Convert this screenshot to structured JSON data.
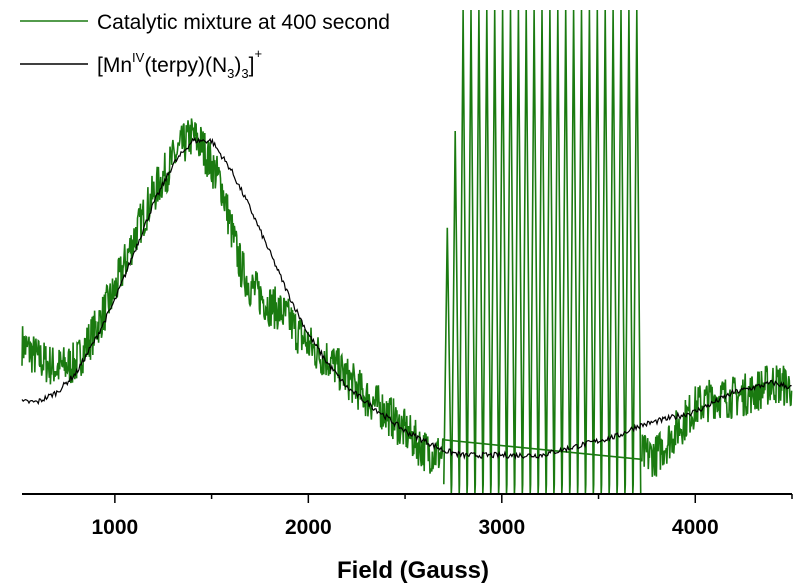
{
  "chart_data": {
    "type": "line",
    "title": "",
    "xlabel": "Field (Gauss)",
    "ylabel": "",
    "xlim": [
      520,
      4500
    ],
    "ylim": [
      0,
      100
    ],
    "grid": false,
    "legend_position": "top-left",
    "x_ticks": [
      {
        "value": 1000,
        "label": "1000"
      },
      {
        "value": 2000,
        "label": "2000"
      },
      {
        "value": 3000,
        "label": "3000"
      },
      {
        "value": 4000,
        "label": "4000"
      }
    ],
    "series": [
      {
        "name": "Catalytic mixture at 400 second",
        "color": "#1a7a10",
        "style": "noisy-with-hyperfine",
        "points": [
          [
            520,
            31
          ],
          [
            600,
            28
          ],
          [
            700,
            26
          ],
          [
            800,
            27
          ],
          [
            900,
            34
          ],
          [
            1000,
            42
          ],
          [
            1100,
            53
          ],
          [
            1200,
            62
          ],
          [
            1300,
            69
          ],
          [
            1350,
            72
          ],
          [
            1400,
            74
          ],
          [
            1450,
            72
          ],
          [
            1500,
            68
          ],
          [
            1550,
            64
          ],
          [
            1600,
            55
          ],
          [
            1650,
            47
          ],
          [
            1700,
            43
          ],
          [
            1750,
            41
          ],
          [
            1800,
            39
          ],
          [
            1850,
            38
          ],
          [
            1900,
            36
          ],
          [
            1950,
            33
          ],
          [
            2000,
            31
          ],
          [
            2050,
            29
          ],
          [
            2100,
            28
          ],
          [
            2200,
            24
          ],
          [
            2300,
            20
          ],
          [
            2400,
            17
          ],
          [
            2500,
            13
          ],
          [
            2600,
            9
          ],
          [
            2700,
            8
          ],
          [
            3800,
            8
          ],
          [
            3900,
            13
          ],
          [
            4000,
            18
          ],
          [
            4100,
            20
          ],
          [
            4200,
            20
          ],
          [
            4300,
            21
          ],
          [
            4400,
            23
          ],
          [
            4500,
            22
          ]
        ],
        "hyperfine": {
          "start": 2700,
          "end": 3720,
          "count": 25,
          "top": 100,
          "bottom": 0
        }
      },
      {
        "name": "[Mn(IV)(terpy)(N3)3]+",
        "color": "#000000",
        "style": "smooth",
        "points": [
          [
            520,
            19
          ],
          [
            600,
            19
          ],
          [
            700,
            21
          ],
          [
            800,
            25
          ],
          [
            900,
            32
          ],
          [
            1000,
            40
          ],
          [
            1100,
            50
          ],
          [
            1200,
            60
          ],
          [
            1300,
            68
          ],
          [
            1400,
            73
          ],
          [
            1500,
            73
          ],
          [
            1600,
            67
          ],
          [
            1700,
            59
          ],
          [
            1800,
            50
          ],
          [
            1900,
            41
          ],
          [
            2000,
            33
          ],
          [
            2100,
            27
          ],
          [
            2200,
            22
          ],
          [
            2300,
            19
          ],
          [
            2400,
            16
          ],
          [
            2500,
            13
          ],
          [
            2600,
            11
          ],
          [
            2700,
            9
          ],
          [
            2800,
            8
          ],
          [
            2900,
            8
          ],
          [
            3000,
            8
          ],
          [
            3100,
            8
          ],
          [
            3200,
            8
          ],
          [
            3300,
            9
          ],
          [
            3400,
            10
          ],
          [
            3500,
            11
          ],
          [
            3600,
            12
          ],
          [
            3700,
            14
          ],
          [
            3800,
            15
          ],
          [
            3900,
            16
          ],
          [
            4000,
            17
          ],
          [
            4100,
            19
          ],
          [
            4200,
            21
          ],
          [
            4300,
            22
          ],
          [
            4400,
            23
          ],
          [
            4500,
            22
          ]
        ]
      }
    ]
  },
  "legend": {
    "green_label": "Catalytic mixture at 400 second",
    "black_label_prefix": "[Mn",
    "black_label_sup": "IV",
    "black_label_mid": "(terpy)(N",
    "black_label_sub1": "3",
    "black_label_close": ")",
    "black_label_sub2": "3",
    "black_label_end": "]",
    "black_label_sup2": "+"
  }
}
